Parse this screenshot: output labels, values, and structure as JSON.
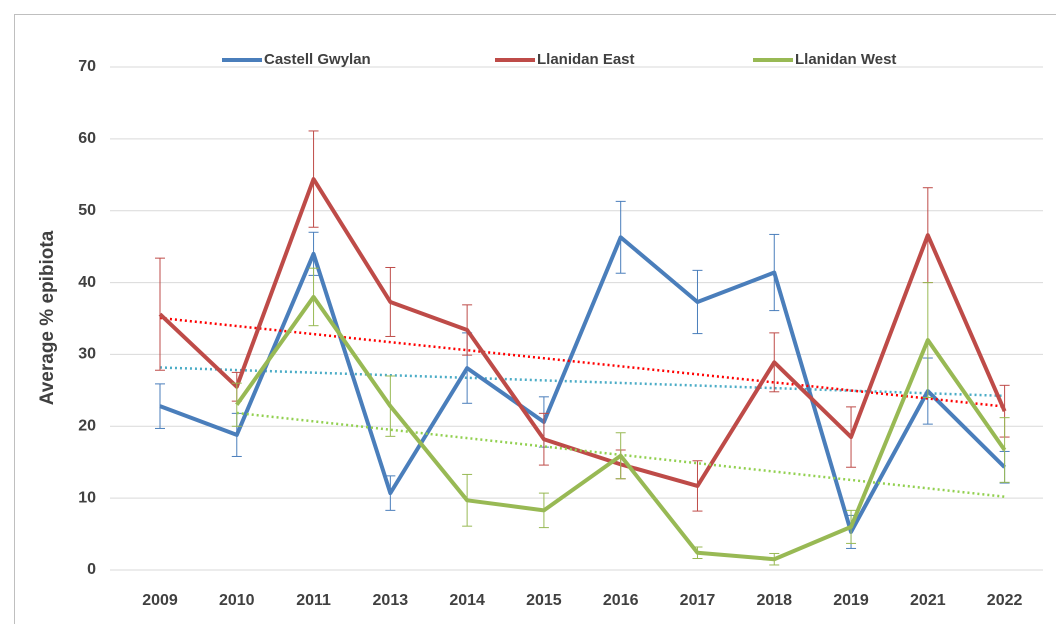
{
  "chart_data": {
    "type": "line",
    "categories": [
      "2009",
      "2010",
      "2011",
      "2013",
      "2014",
      "2015",
      "2016",
      "2017",
      "2018",
      "2019",
      "2021",
      "2022"
    ],
    "y_label": "Average % epibiota",
    "ylim": [
      0,
      70
    ],
    "yticks": [
      0,
      10,
      20,
      30,
      40,
      50,
      60,
      70
    ],
    "grid": true,
    "legend": "top",
    "trendline": true,
    "series": [
      {
        "name": "Castell Gwylan",
        "color": "#4a7ebb",
        "trend_color": "#4bacc6",
        "values": [
          22.8,
          18.8,
          44,
          10.7,
          28.1,
          20.6,
          46.3,
          37.3,
          41.4,
          5.3,
          24.9,
          14.3
        ],
        "errors": [
          3.1,
          3,
          3,
          2.4,
          4.9,
          3.5,
          5,
          4.4,
          5.3,
          2.3,
          4.6,
          2.2
        ]
      },
      {
        "name": "Llanidan East",
        "color": "#be4b48",
        "trend_color": "#ff0000",
        "values": [
          35.6,
          25.5,
          54.4,
          37.3,
          33.4,
          18.2,
          14.7,
          11.7,
          28.9,
          18.5,
          46.6,
          22.1
        ],
        "errors": [
          7.8,
          2,
          6.7,
          4.8,
          3.5,
          3.6,
          2,
          3.5,
          4.1,
          4.2,
          6.6,
          3.6
        ]
      },
      {
        "name": "Llanidan West",
        "color": "#98b954",
        "trend_color": "#92d050",
        "values": [
          null,
          23,
          38,
          22.8,
          9.7,
          8.3,
          15.9,
          2.4,
          1.5,
          6,
          32,
          16.7
        ],
        "errors": [
          null,
          3,
          4,
          4.2,
          3.6,
          2.4,
          3.2,
          0.8,
          0.8,
          2.3,
          8,
          4.5
        ]
      }
    ]
  }
}
